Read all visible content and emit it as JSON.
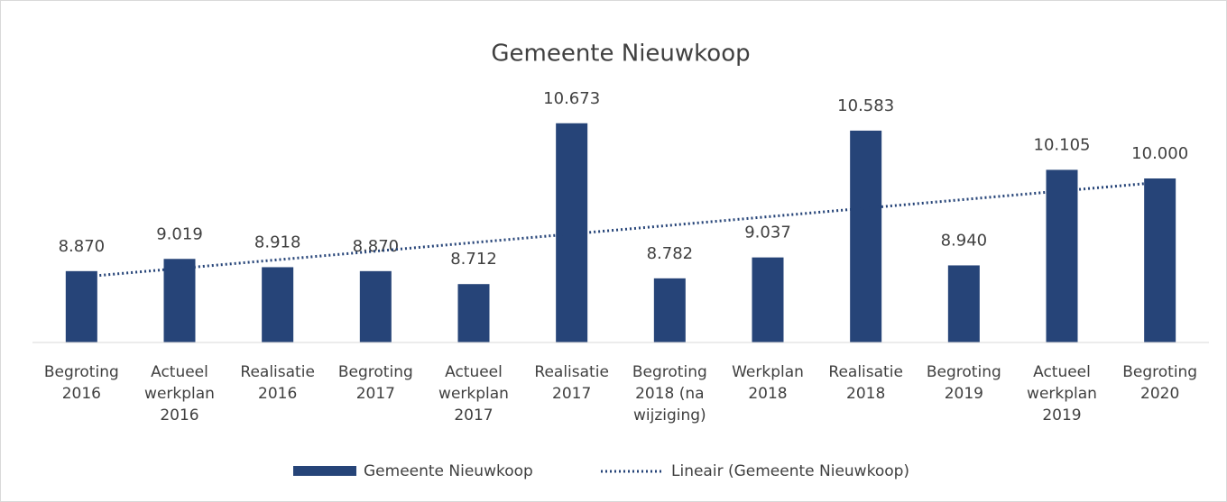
{
  "chart_data": {
    "type": "bar",
    "title": "Gemeente Nieuwkoop",
    "categories": [
      [
        "Begroting",
        "2016"
      ],
      [
        "Actueel",
        "werkplan",
        "2016"
      ],
      [
        "Realisatie",
        "2016"
      ],
      [
        "Begroting",
        "2017"
      ],
      [
        "Actueel",
        "werkplan",
        "2017"
      ],
      [
        "Realisatie",
        "2017"
      ],
      [
        "Begroting",
        "2018 (na",
        "wijziging)"
      ],
      [
        "Werkplan",
        "2018"
      ],
      [
        "Realisatie",
        "2018"
      ],
      [
        "Begroting",
        "2019"
      ],
      [
        "Actueel",
        "werkplan",
        "2019"
      ],
      [
        "Begroting",
        "2020"
      ]
    ],
    "series": [
      {
        "name": "Gemeente Nieuwkoop",
        "color": "#264478",
        "values": [
          8870,
          9019,
          8918,
          8870,
          8712,
          10673,
          8782,
          9037,
          10583,
          8940,
          10105,
          10000
        ],
        "value_labels": [
          "8.870",
          "9.019",
          "8.918",
          "8.870",
          "8.712",
          "10.673",
          "8.782",
          "9.037",
          "10.583",
          "8.940",
          "10.105",
          "10.000"
        ]
      }
    ],
    "trendline": {
      "name": "Lineair (Gemeente Nieuwkoop)",
      "color": "#264478"
    },
    "ylim": [
      8000,
      11000
    ],
    "legend": "bottom"
  }
}
